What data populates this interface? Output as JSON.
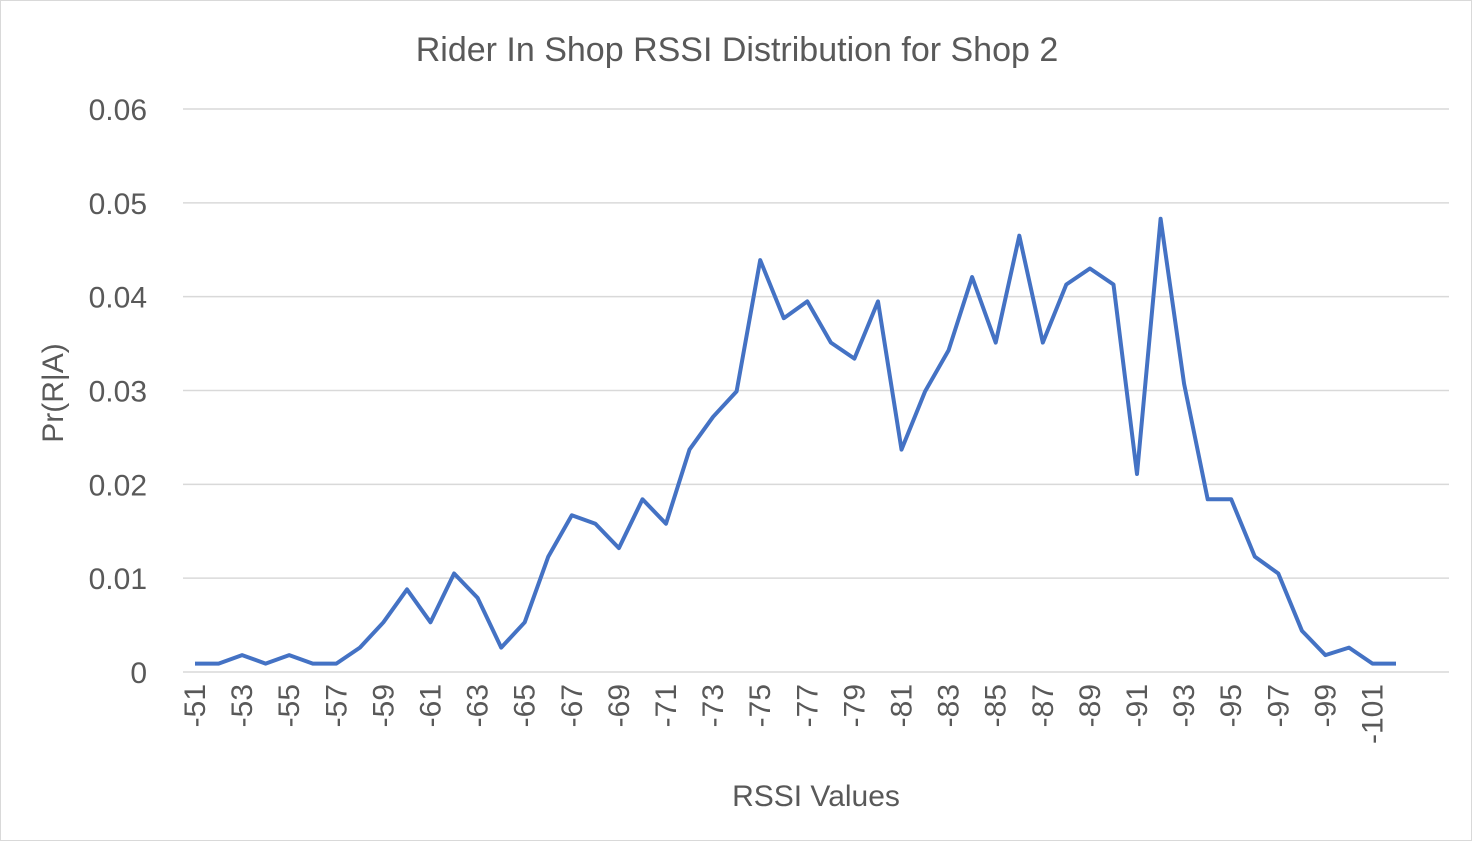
{
  "chart_data": {
    "type": "line",
    "title": "Rider In Shop RSSI Distribution for Shop 2",
    "xlabel": "RSSI Values",
    "ylabel": "Pr(R|A)",
    "ylim": [
      0,
      0.06
    ],
    "y_ticks": [
      "0",
      "0.01",
      "0.02",
      "0.03",
      "0.04",
      "0.05",
      "0.06"
    ],
    "x_tick_labels": [
      "-51",
      "-53",
      "-55",
      "-57",
      "-59",
      "-61",
      "-63",
      "-65",
      "-67",
      "-69",
      "-71",
      "-73",
      "-75",
      "-77",
      "-79",
      "-81",
      "-83",
      "-85",
      "-87",
      "-89",
      "-91",
      "-93",
      "-95",
      "-97",
      "-99",
      "-101"
    ],
    "grid": true,
    "legend": "none",
    "colors": {
      "series": "#4472c4",
      "grid": "#d9d9d9",
      "text": "#595959"
    },
    "x": [
      -51,
      -52,
      -53,
      -54,
      -55,
      -56,
      -57,
      -58,
      -59,
      -60,
      -61,
      -62,
      -63,
      -64,
      -65,
      -66,
      -67,
      -68,
      -69,
      -70,
      -71,
      -72,
      -73,
      -74,
      -75,
      -76,
      -77,
      -78,
      -79,
      -80,
      -81,
      -82,
      -83,
      -84,
      -85,
      -86,
      -87,
      -88,
      -89,
      -90,
      -91,
      -92,
      -93,
      -94,
      -95,
      -96,
      -97,
      -98,
      -99,
      -100,
      -101,
      -102
    ],
    "series": [
      {
        "values": [
          0.0009,
          0.0009,
          0.0018,
          0.0009,
          0.0018,
          0.0009,
          0.0009,
          0.0026,
          0.0053,
          0.0088,
          0.0053,
          0.0105,
          0.0079,
          0.0026,
          0.0053,
          0.0123,
          0.0167,
          0.0158,
          0.0132,
          0.0184,
          0.0158,
          0.0237,
          0.0272,
          0.0299,
          0.0439,
          0.0377,
          0.0395,
          0.0351,
          0.0334,
          0.0395,
          0.0237,
          0.0299,
          0.0343,
          0.0421,
          0.0351,
          0.0465,
          0.0351,
          0.0413,
          0.043,
          0.0413,
          0.0211,
          0.0483,
          0.0307,
          0.0184,
          0.0184,
          0.0123,
          0.0105,
          0.0044,
          0.0018,
          0.0026,
          0.0009,
          0.0009
        ]
      }
    ]
  }
}
